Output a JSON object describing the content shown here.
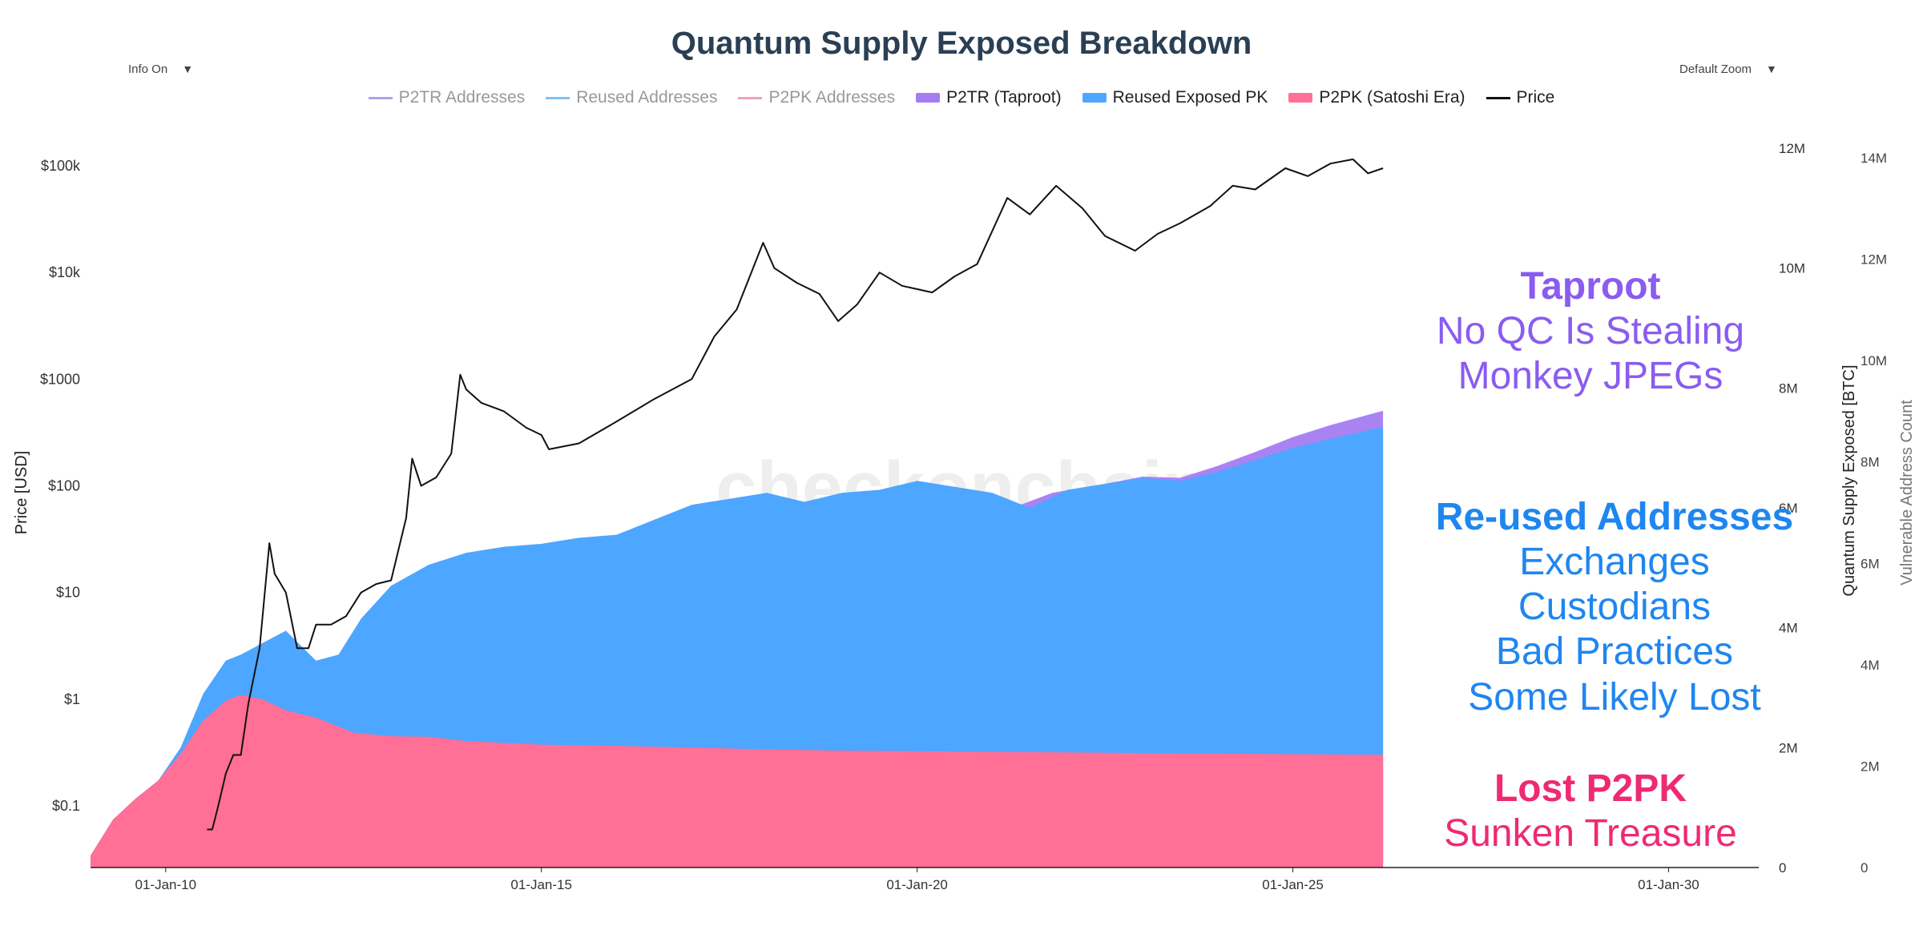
{
  "chart_data": {
    "type": "area",
    "title": "Quantum Supply Exposed Breakdown",
    "watermark": "checkonchain",
    "controls": {
      "info_toggle": "Info On",
      "zoom": "Default Zoom"
    },
    "legend": [
      {
        "label": "P2TR Addresses",
        "color": "#b39cf2",
        "kind": "line",
        "active": false
      },
      {
        "label": "Reused Addresses",
        "color": "#7cc4f4",
        "kind": "line",
        "active": false
      },
      {
        "label": "P2PK Addresses",
        "color": "#f4a0b8",
        "kind": "line",
        "active": false
      },
      {
        "label": "P2TR (Taproot)",
        "color": "#a57cf2",
        "kind": "box",
        "active": true
      },
      {
        "label": "Reused Exposed PK",
        "color": "#4da6ff",
        "kind": "box",
        "active": true
      },
      {
        "label": "P2PK (Satoshi Era)",
        "color": "#ff6f96",
        "kind": "box",
        "active": true
      },
      {
        "label": "Price",
        "color": "#111111",
        "kind": "line",
        "active": true
      }
    ],
    "x_axis": {
      "ticks": [
        "01-Jan-10",
        "01-Jan-15",
        "01-Jan-20",
        "01-Jan-25",
        "01-Jan-30"
      ],
      "range": [
        2009.0,
        2031.2
      ]
    },
    "y_left": {
      "label": "Price [USD]",
      "scale": "log",
      "ticks": [
        "$0.1",
        "$1",
        "$10",
        "$100",
        "$1000",
        "$10k",
        "$100k"
      ]
    },
    "y_right1": {
      "label": "Quantum Supply Exposed [BTC]",
      "ticks": [
        "0",
        "2M",
        "4M",
        "6M",
        "8M",
        "10M",
        "12M"
      ],
      "range": [
        0,
        12600000
      ]
    },
    "y_right2": {
      "label": "Vulnerable Address Count",
      "ticks": [
        "0",
        "2M",
        "4M",
        "6M",
        "8M",
        "10M",
        "12M",
        "14M"
      ],
      "range": [
        0,
        14900000
      ]
    },
    "series": [
      {
        "name": "P2PK (Satoshi Era)",
        "color": "#ff6f96",
        "x": [
          2009.0,
          2009.3,
          2009.6,
          2009.9,
          2010.2,
          2010.5,
          2010.8,
          2011.0,
          2011.3,
          2011.6,
          2012.0,
          2012.5,
          2013.0,
          2013.5,
          2014.0,
          2015.0,
          2016.0,
          2017.0,
          2018.0,
          2019.0,
          2020.0,
          2021.0,
          2022.0,
          2023.0,
          2024.0,
          2025.0,
          2026.2
        ],
        "values": [
          200000,
          800000,
          1150000,
          1450000,
          1900000,
          2450000,
          2780000,
          2880000,
          2800000,
          2620000,
          2500000,
          2250000,
          2190000,
          2180000,
          2110000,
          2050000,
          2030000,
          2000000,
          1970000,
          1950000,
          1940000,
          1930000,
          1920000,
          1910000,
          1900000,
          1890000,
          1880000
        ]
      },
      {
        "name": "Reused Exposed PK",
        "color": "#4da6ff",
        "x": [
          2009.0,
          2009.3,
          2009.6,
          2009.9,
          2010.2,
          2010.5,
          2010.8,
          2011.0,
          2011.3,
          2011.6,
          2012.0,
          2012.3,
          2012.6,
          2013.0,
          2013.5,
          2014.0,
          2014.5,
          2015.0,
          2015.5,
          2016.0,
          2016.5,
          2017.0,
          2017.5,
          2018.0,
          2018.5,
          2019.0,
          2019.5,
          2020.0,
          2020.5,
          2021.0,
          2021.5,
          2022.0,
          2022.5,
          2023.0,
          2023.5,
          2024.0,
          2024.5,
          2025.0,
          2025.5,
          2026.2
        ],
        "values": [
          200000,
          800000,
          1150000,
          1450000,
          2000000,
          2900000,
          3450000,
          3550000,
          3750000,
          3950000,
          3450000,
          3550000,
          4150000,
          4700000,
          5050000,
          5250000,
          5350000,
          5400000,
          5500000,
          5550000,
          5800000,
          6050000,
          6150000,
          6250000,
          6100000,
          6250000,
          6300000,
          6450000,
          6350000,
          6250000,
          6000000,
          6300000,
          6400000,
          6500000,
          6450000,
          6600000,
          6800000,
          7000000,
          7150000,
          7350000
        ]
      },
      {
        "name": "P2TR (Taproot)",
        "color": "#a57cf2",
        "x": [
          2009.0,
          2021.8,
          2022.5,
          2023.0,
          2023.5,
          2024.0,
          2024.5,
          2025.0,
          2025.5,
          2026.2
        ],
        "values": [
          200000,
          6250000,
          6400000,
          6520000,
          6500000,
          6700000,
          6930000,
          7180000,
          7380000,
          7620000
        ]
      },
      {
        "name": "Price",
        "color": "#111111",
        "axis": "left",
        "x": [
          2010.55,
          2010.62,
          2010.7,
          2010.8,
          2010.9,
          2011.0,
          2011.1,
          2011.25,
          2011.38,
          2011.45,
          2011.6,
          2011.75,
          2011.9,
          2012.0,
          2012.2,
          2012.4,
          2012.6,
          2012.8,
          2013.0,
          2013.2,
          2013.28,
          2013.4,
          2013.6,
          2013.8,
          2013.92,
          2014.0,
          2014.2,
          2014.5,
          2014.8,
          2015.0,
          2015.1,
          2015.5,
          2016.0,
          2016.5,
          2017.0,
          2017.3,
          2017.6,
          2017.95,
          2018.1,
          2018.4,
          2018.7,
          2018.95,
          2019.2,
          2019.5,
          2019.8,
          2020.2,
          2020.5,
          2020.8,
          2021.2,
          2021.5,
          2021.85,
          2022.2,
          2022.5,
          2022.9,
          2023.2,
          2023.5,
          2023.9,
          2024.2,
          2024.5,
          2024.9,
          2025.2,
          2025.5,
          2025.8,
          2026.0,
          2026.2
        ],
        "values": [
          0.06,
          0.06,
          0.1,
          0.2,
          0.3,
          0.3,
          0.9,
          3,
          29,
          15,
          10,
          3,
          3,
          5,
          5,
          6,
          10,
          12,
          13,
          50,
          180,
          100,
          120,
          200,
          1100,
          800,
          600,
          500,
          350,
          300,
          220,
          250,
          400,
          650,
          1000,
          2500,
          4500,
          19000,
          11000,
          8000,
          6300,
          3500,
          5000,
          10000,
          7500,
          6500,
          9200,
          12000,
          50000,
          35000,
          65000,
          40000,
          22000,
          16000,
          23000,
          29000,
          42000,
          65000,
          60000,
          95000,
          80000,
          105000,
          115000,
          85000,
          95000
        ]
      }
    ],
    "annotations": [
      {
        "head": "Taproot",
        "lines": [
          "No QC Is Stealing",
          "Monkey JPEGs"
        ],
        "color": "#8a5cf0"
      },
      {
        "head": "Re-used Addresses",
        "lines": [
          "Exchanges",
          "Custodians",
          "Bad Practices",
          "Some Likely Lost"
        ],
        "color": "#1f86f0"
      },
      {
        "head": "Lost P2PK",
        "lines": [
          "Sunken Treasure"
        ],
        "color": "#ee2a72"
      }
    ]
  }
}
